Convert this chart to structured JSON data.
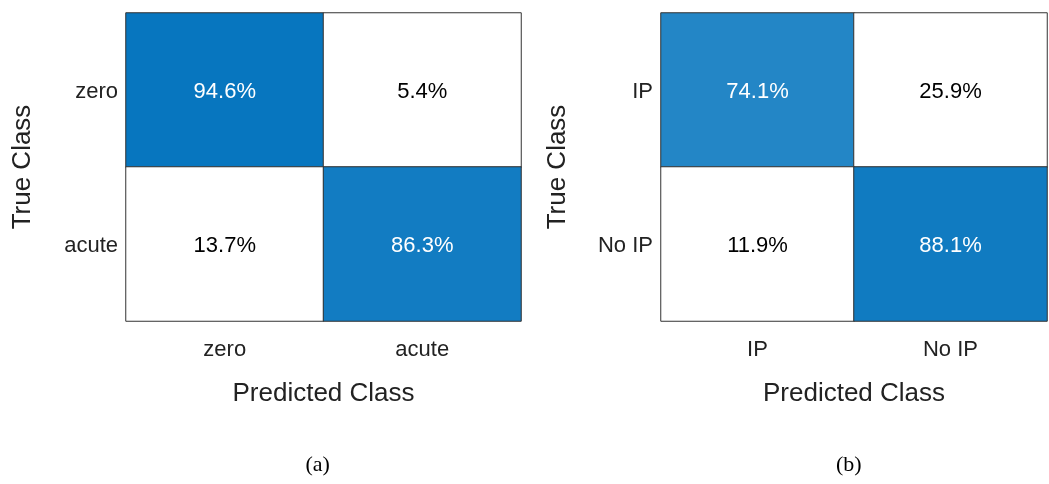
{
  "chart_data": [
    {
      "type": "heatmap",
      "xlabel": "Predicted Class",
      "ylabel": "True Class",
      "categories": [
        "zero",
        "acute"
      ],
      "y_categories": [
        "zero",
        "acute"
      ],
      "cells": [
        [
          94.6,
          5.4
        ],
        [
          13.7,
          86.3
        ]
      ],
      "cell_labels": [
        [
          "94.6%",
          "5.4%"
        ],
        [
          "13.7%",
          "86.3%"
        ]
      ],
      "annotations": [
        "(a)"
      ]
    },
    {
      "type": "heatmap",
      "xlabel": "Predicted Class",
      "ylabel": "True Class",
      "categories": [
        "IP",
        "No IP"
      ],
      "y_categories": [
        "IP",
        "No IP"
      ],
      "cells": [
        [
          74.1,
          25.9
        ],
        [
          11.9,
          88.1
        ]
      ],
      "cell_labels": [
        [
          "74.1%",
          "25.9%"
        ],
        [
          "11.9%",
          "88.1%"
        ]
      ],
      "annotations": [
        "(b)"
      ]
    }
  ]
}
